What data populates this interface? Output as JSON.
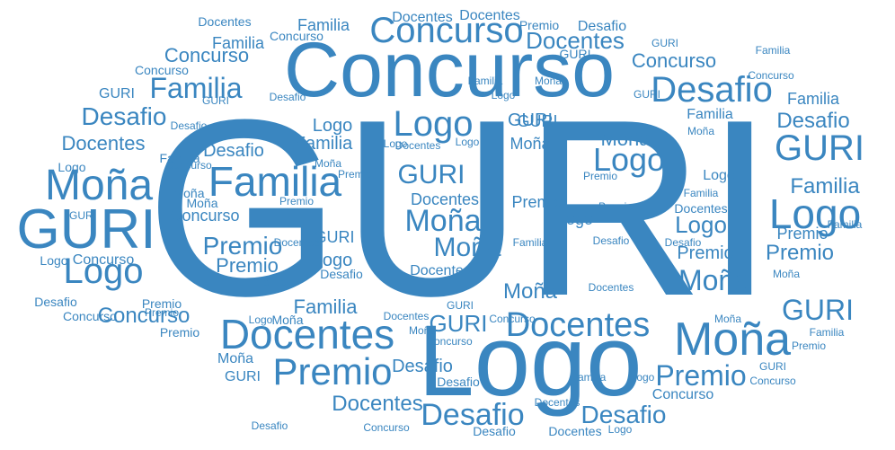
{
  "color": "#3a86c0",
  "words": [
    {
      "text": "GURI",
      "size": 3
    },
    {
      "text": "Logo",
      "size": 2
    },
    {
      "text": "Concurso",
      "size": 2
    },
    {
      "text": "Docentes",
      "size": 2
    },
    {
      "text": "Moña",
      "size": 2
    },
    {
      "text": "Premio",
      "size": 2
    },
    {
      "text": "Familia",
      "size": 2
    },
    {
      "text": "Desafio",
      "size": 2
    },
    {
      "text": "GURI",
      "size": 2
    },
    {
      "text": "Logo",
      "size": 2
    },
    {
      "text": "Moña",
      "size": 2
    },
    {
      "text": "Familia",
      "size": 1
    },
    {
      "text": "Concurso",
      "size": 1
    },
    {
      "text": "Docentes",
      "size": 1
    },
    {
      "text": "Desafio",
      "size": 1
    },
    {
      "text": "Premio",
      "size": 1
    },
    {
      "text": "GURI",
      "size": 1
    },
    {
      "text": "Logo",
      "size": 1
    },
    {
      "text": "Moña",
      "size": 1
    },
    {
      "text": "Premio",
      "size": 1
    },
    {
      "text": "Desafio",
      "size": 1
    },
    {
      "text": "Familia",
      "size": 1
    },
    {
      "text": "Docentes",
      "size": 1
    },
    {
      "text": "Concurso",
      "size": 1
    },
    {
      "text": "GURI",
      "size": 1
    },
    {
      "text": "Logo",
      "size": 1
    },
    {
      "text": "Moña",
      "size": 1
    },
    {
      "text": "Premio",
      "size": 1
    },
    {
      "text": "Familia",
      "size": 1
    },
    {
      "text": "Desafio",
      "size": 1
    },
    {
      "text": "Docentes",
      "size": 1
    },
    {
      "text": "Concurso",
      "size": 1
    },
    {
      "text": "GURI",
      "size": 1
    },
    {
      "text": "Logo",
      "size": 1
    },
    {
      "text": "Moña",
      "size": 1
    },
    {
      "text": "Desafio",
      "size": 1
    },
    {
      "text": "Familia",
      "size": 1
    },
    {
      "text": "Premio",
      "size": 1
    },
    {
      "text": "Docentes",
      "size": 1
    },
    {
      "text": "Concurso",
      "size": 1
    },
    {
      "text": "GURI",
      "size": 1
    },
    {
      "text": "Logo",
      "size": 1
    },
    {
      "text": "Moña",
      "size": 1
    },
    {
      "text": "Premio",
      "size": 1
    },
    {
      "text": "Familia",
      "size": 1
    },
    {
      "text": "Desafio",
      "size": 1
    },
    {
      "text": "Docentes",
      "size": 1
    },
    {
      "text": "Concurso",
      "size": 1
    },
    {
      "text": "GURI",
      "size": 1
    },
    {
      "text": "Logo",
      "size": 1
    },
    {
      "text": "Moña",
      "size": 1
    },
    {
      "text": "Premio",
      "size": 1
    },
    {
      "text": "Familia",
      "size": 1
    },
    {
      "text": "Desafio",
      "size": 1
    },
    {
      "text": "Docentes",
      "size": 1
    },
    {
      "text": "Concurso",
      "size": 1
    },
    {
      "text": "GURI",
      "size": 1
    },
    {
      "text": "Logo",
      "size": 1
    },
    {
      "text": "Moña",
      "size": 1
    },
    {
      "text": "Desafio",
      "size": 1
    },
    {
      "text": "Familia",
      "size": 1
    },
    {
      "text": "Premio",
      "size": 1
    },
    {
      "text": "Docentes",
      "size": 1
    },
    {
      "text": "Concurso",
      "size": 1
    },
    {
      "text": "GURI",
      "size": 1
    },
    {
      "text": "Logo",
      "size": 1
    },
    {
      "text": "Moña",
      "size": 1
    },
    {
      "text": "Premio",
      "size": 1
    },
    {
      "text": "Familia",
      "size": 1
    },
    {
      "text": "Desafio",
      "size": 1
    },
    {
      "text": "Docentes",
      "size": 1
    },
    {
      "text": "Concurso",
      "size": 1
    },
    {
      "text": "GURI",
      "size": 1
    },
    {
      "text": "Logo",
      "size": 1
    },
    {
      "text": "Moña",
      "size": 1
    },
    {
      "text": "Premio",
      "size": 1
    },
    {
      "text": "Familia",
      "size": 1
    },
    {
      "text": "Desafio",
      "size": 1
    },
    {
      "text": "Docentes",
      "size": 1
    },
    {
      "text": "Concurso",
      "size": 1
    },
    {
      "text": "GURI",
      "size": 1
    },
    {
      "text": "Logo",
      "size": 1
    },
    {
      "text": "Moña",
      "size": 1
    },
    {
      "text": "Premio",
      "size": 1
    },
    {
      "text": "Familia",
      "size": 1
    },
    {
      "text": "Desafio",
      "size": 1
    },
    {
      "text": "Docentes",
      "size": 1
    },
    {
      "text": "Concurso",
      "size": 1
    },
    {
      "text": "GURI",
      "size": 1
    },
    {
      "text": "Logo",
      "size": 1
    },
    {
      "text": "Moña",
      "size": 1
    },
    {
      "text": "Premio",
      "size": 1
    },
    {
      "text": "Familia",
      "size": 1
    },
    {
      "text": "Desafio",
      "size": 1
    },
    {
      "text": "Docentes",
      "size": 1
    },
    {
      "text": "Concurso",
      "size": 1
    },
    {
      "text": "GURI",
      "size": 1
    },
    {
      "text": "Logo",
      "size": 1
    },
    {
      "text": "Moña",
      "size": 1
    },
    {
      "text": "Premio",
      "size": 1
    },
    {
      "text": "Familia",
      "size": 1
    },
    {
      "text": "Desafio",
      "size": 1
    },
    {
      "text": "Docentes",
      "size": 1
    },
    {
      "text": "Concurso",
      "size": 1
    },
    {
      "text": "GURI",
      "size": 1
    },
    {
      "text": "Logo",
      "size": 1
    },
    {
      "text": "Moña",
      "size": 1
    },
    {
      "text": "Premio",
      "size": 1
    },
    {
      "text": "Familia",
      "size": 1
    },
    {
      "text": "Desafio",
      "size": 1
    },
    {
      "text": "Docentes",
      "size": 1
    },
    {
      "text": "Concurso",
      "size": 1
    },
    {
      "text": "GURI",
      "size": 1
    },
    {
      "text": "Logo",
      "size": 1
    },
    {
      "text": "Moña",
      "size": 1
    },
    {
      "text": "Premio",
      "size": 1
    },
    {
      "text": "Familia",
      "size": 1
    },
    {
      "text": "Desafio",
      "size": 1
    },
    {
      "text": "Docentes",
      "size": 1
    },
    {
      "text": "Concurso",
      "size": 1
    },
    {
      "text": "GURI",
      "size": 1
    },
    {
      "text": "Logo",
      "size": 1
    },
    {
      "text": "Moña",
      "size": 1
    },
    {
      "text": "Premio",
      "size": 1
    },
    {
      "text": "Familia",
      "size": 1
    },
    {
      "text": "Desafio",
      "size": 1
    },
    {
      "text": "Docentes",
      "size": 1
    },
    {
      "text": "Concurso",
      "size": 1
    },
    {
      "text": "GURI",
      "size": 1
    },
    {
      "text": "Logo",
      "size": 1
    },
    {
      "text": "Moña",
      "size": 1
    },
    {
      "text": "Premio",
      "size": 1
    },
    {
      "text": "Familia",
      "size": 1
    },
    {
      "text": "Desafio",
      "size": 1
    },
    {
      "text": "Docentes",
      "size": 1
    },
    {
      "text": "Concurso",
      "size": 1
    },
    {
      "text": "GURI",
      "size": 1
    },
    {
      "text": "Logo",
      "size": 1
    },
    {
      "text": "Moña",
      "size": 1
    },
    {
      "text": "Premio",
      "size": 1
    },
    {
      "text": "Familia",
      "size": 1
    },
    {
      "text": "Desafio",
      "size": 1
    },
    {
      "text": "Docentes",
      "size": 1
    },
    {
      "text": "Concurso",
      "size": 1
    }
  ]
}
